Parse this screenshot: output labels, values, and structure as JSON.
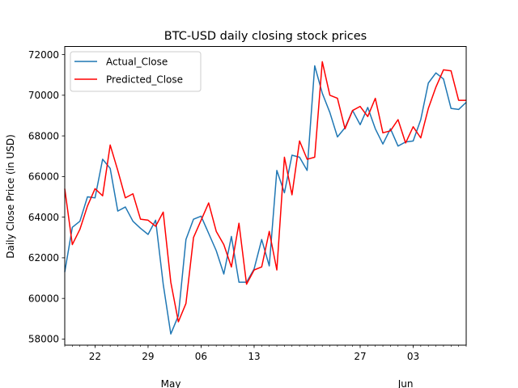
{
  "chart_data": {
    "type": "line",
    "title": "BTC-USD daily closing stock prices",
    "xlabel": "",
    "ylabel": "Daily Close Price (in USD)",
    "ylim": [
      57700,
      72400
    ],
    "yticks": [
      58000,
      60000,
      62000,
      64000,
      66000,
      68000,
      70000,
      72000
    ],
    "ytick_labels": [
      "58000",
      "60000",
      "62000",
      "64000",
      "66000",
      "68000",
      "70000",
      "72000"
    ],
    "x_start_date": "2024-04-18",
    "x_count": 54,
    "xticks": [
      {
        "index": 4,
        "label": "22"
      },
      {
        "index": 11,
        "label": "29"
      },
      {
        "index": 18,
        "label": "06"
      },
      {
        "index": 25,
        "label": "13"
      },
      {
        "index": 39,
        "label": "27"
      },
      {
        "index": 46,
        "label": "03"
      }
    ],
    "month_labels": [
      {
        "index": 14,
        "label": "May"
      },
      {
        "index": 45,
        "label": "Jun"
      }
    ],
    "legend": "top-left",
    "grid": false,
    "series": [
      {
        "name": "Actual_Close",
        "color": "#1f77b4",
        "values": [
          61300,
          63500,
          63800,
          65000,
          64950,
          66850,
          66400,
          64300,
          64500,
          63800,
          63450,
          63150,
          63850,
          60700,
          58250,
          59150,
          62900,
          63900,
          64050,
          63200,
          62350,
          61200,
          63050,
          60800,
          60800,
          61450,
          62900,
          61600,
          66300,
          65200,
          67050,
          66950,
          66300,
          71450,
          70100,
          69150,
          67950,
          68400,
          69250,
          68550,
          69400,
          68350,
          67600,
          68350,
          67500,
          67700,
          67750,
          68800,
          70600,
          71100,
          70800,
          69350,
          69300,
          69650
        ]
      },
      {
        "name": "Predicted_Close",
        "color": "#ff0000",
        "values": [
          65400,
          62650,
          63400,
          64550,
          65400,
          65050,
          67550,
          66300,
          64950,
          65150,
          63900,
          63850,
          63550,
          64250,
          60800,
          58850,
          59750,
          63000,
          63850,
          64700,
          63300,
          62650,
          61550,
          63700,
          60700,
          61400,
          61550,
          63300,
          61400,
          66950,
          65100,
          67750,
          66850,
          66950,
          71650,
          70000,
          69850,
          68350,
          69250,
          69450,
          68950,
          69850,
          68150,
          68250,
          68800,
          67650,
          68450,
          67900,
          69350,
          70400,
          71250,
          71200,
          69750,
          69750
        ]
      }
    ]
  }
}
